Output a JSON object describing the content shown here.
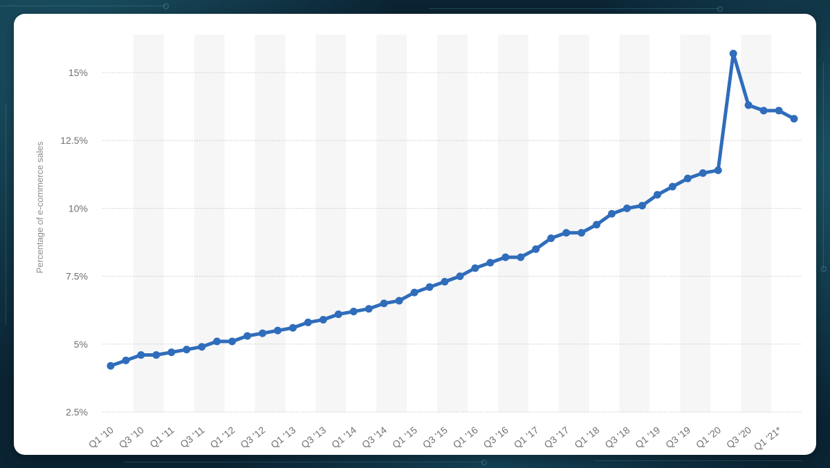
{
  "chart_data": {
    "type": "line",
    "ylabel": "Percentage of e-commerce sales",
    "categories": [
      "Q1 '10",
      "",
      "Q3 '10",
      "",
      "Q1 '11",
      "",
      "Q3 '11",
      "",
      "Q1 '12",
      "",
      "Q3 '12",
      "",
      "Q1 '13",
      "",
      "Q3 '13",
      "",
      "Q1 '14",
      "",
      "Q3 '14",
      "",
      "Q1 '15",
      "",
      "Q3 '15",
      "",
      "Q1 '16",
      "",
      "Q3 '16",
      "",
      "Q1 '17",
      "",
      "Q3 '17",
      "",
      "Q1 '18",
      "",
      "Q3 '18",
      "",
      "Q1 '19",
      "",
      "Q3 '19",
      "",
      "Q1 '20",
      "",
      "Q3 '20",
      "",
      "Q1 '21*",
      ""
    ],
    "values": [
      4.2,
      4.4,
      4.6,
      4.6,
      4.7,
      4.8,
      4.9,
      5.1,
      5.1,
      5.3,
      5.4,
      5.5,
      5.6,
      5.8,
      5.9,
      6.1,
      6.2,
      6.3,
      6.5,
      6.6,
      6.9,
      7.1,
      7.3,
      7.5,
      7.8,
      8.0,
      8.2,
      8.2,
      8.5,
      8.9,
      9.1,
      9.1,
      9.4,
      9.8,
      10.0,
      10.1,
      10.5,
      10.8,
      11.1,
      11.3,
      11.4,
      15.7,
      13.8,
      13.6,
      13.6,
      13.3
    ],
    "y_ticks": [
      2.5,
      5,
      7.5,
      10,
      12.5,
      15
    ],
    "y_tick_labels": [
      "2.5%",
      "5%",
      "7.5%",
      "10%",
      "12.5%",
      "15%"
    ],
    "ylim": [
      2.5,
      16.4
    ],
    "grid": true,
    "legend": "none",
    "colors": {
      "line": "#2f6dbb",
      "grid": "#c4c4c4",
      "band": "#f6f6f6"
    }
  }
}
